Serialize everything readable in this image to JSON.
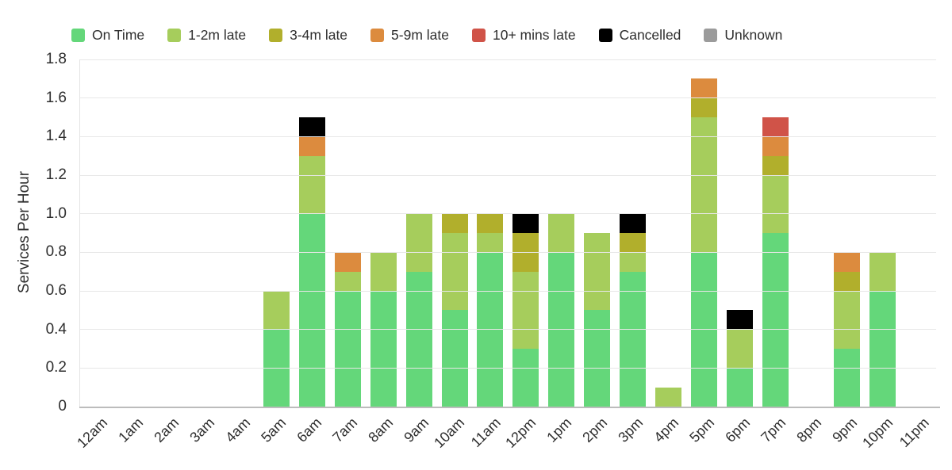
{
  "chart_data": {
    "type": "bar",
    "stacked": true,
    "title": "",
    "xlabel": "",
    "ylabel": "Services Per Hour",
    "ylim": [
      0,
      1.8
    ],
    "ytick_step": 0.2,
    "yticks": [
      "1.8",
      "1.6",
      "1.4",
      "1.2",
      "1.0",
      "0.8",
      "0.6",
      "0.4",
      "0.2",
      "0"
    ],
    "grid": true,
    "legend_position": "top",
    "categories": [
      "12am",
      "1am",
      "2am",
      "3am",
      "4am",
      "5am",
      "6am",
      "7am",
      "8am",
      "9am",
      "10am",
      "11am",
      "12pm",
      "1pm",
      "2pm",
      "3pm",
      "4pm",
      "5pm",
      "6pm",
      "7pm",
      "8pm",
      "9pm",
      "10pm",
      "11pm"
    ],
    "series": [
      {
        "name": "On Time",
        "color": "#64d77a",
        "values": [
          0,
          0,
          0,
          0,
          0,
          0.4,
          1.0,
          0.6,
          0.6,
          0.7,
          0.5,
          0.8,
          0.3,
          0.8,
          0.5,
          0.7,
          0,
          0.8,
          0.2,
          0.9,
          0,
          0.3,
          0.6,
          0
        ]
      },
      {
        "name": "1-2m late",
        "color": "#a6cd5c",
        "values": [
          0,
          0,
          0,
          0,
          0,
          0.2,
          0.3,
          0.1,
          0.2,
          0.3,
          0.4,
          0.1,
          0.4,
          0.2,
          0.4,
          0.1,
          0.1,
          0.7,
          0.2,
          0.3,
          0,
          0.3,
          0.2,
          0
        ]
      },
      {
        "name": "3-4m late",
        "color": "#b1af2c",
        "values": [
          0,
          0,
          0,
          0,
          0,
          0,
          0,
          0,
          0,
          0,
          0.1,
          0.1,
          0.2,
          0,
          0,
          0.1,
          0,
          0.1,
          0,
          0.1,
          0,
          0.1,
          0,
          0
        ]
      },
      {
        "name": "5-9m late",
        "color": "#dc8b3e",
        "values": [
          0,
          0,
          0,
          0,
          0,
          0,
          0.1,
          0.1,
          0,
          0,
          0,
          0,
          0,
          0,
          0,
          0,
          0,
          0.1,
          0,
          0.1,
          0,
          0.1,
          0,
          0
        ]
      },
      {
        "name": "10+ mins late",
        "color": "#d05348",
        "values": [
          0,
          0,
          0,
          0,
          0,
          0,
          0,
          0,
          0,
          0,
          0,
          0,
          0,
          0,
          0,
          0,
          0,
          0,
          0,
          0.1,
          0,
          0,
          0,
          0
        ]
      },
      {
        "name": "Cancelled",
        "color": "#000000",
        "values": [
          0,
          0,
          0,
          0,
          0,
          0,
          0.1,
          0,
          0,
          0,
          0,
          0,
          0.1,
          0,
          0,
          0.1,
          0,
          0,
          0.1,
          0,
          0,
          0,
          0,
          0
        ]
      },
      {
        "name": "Unknown",
        "color": "#9b9b9b",
        "values": [
          0,
          0,
          0,
          0,
          0,
          0,
          0,
          0,
          0,
          0,
          0,
          0,
          0,
          0,
          0,
          0,
          0,
          0,
          0,
          0,
          0,
          0,
          0,
          0
        ]
      }
    ]
  },
  "style": {
    "gridline_color": "#e7e7e7",
    "baseline_color": "#bcbcbc",
    "text_color": "#2e2e2e",
    "background_color": "#ffffff"
  }
}
